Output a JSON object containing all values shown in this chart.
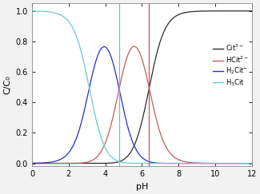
{
  "xlabel": "pH",
  "ylabel": "C/C₀",
  "xlim": [
    0,
    12
  ],
  "ylim": [
    -0.02,
    1.05
  ],
  "xticks": [
    0,
    2,
    4,
    6,
    8,
    10,
    12
  ],
  "yticks": [
    0.0,
    0.2,
    0.4,
    0.6,
    0.8,
    1.0
  ],
  "pKa1": 3.13,
  "pKa2": 4.76,
  "pKa3": 6.4,
  "vline1_x": 4.76,
  "vline2_x": 6.4,
  "vline1_color": "#7ab8d4",
  "vline2_color": "#c55a5a",
  "legend_labels": [
    "Cit$^{3-}$",
    "HCit$^{2-}$",
    "H$_2$Cit$^{-}$",
    "H$_3$Cit"
  ],
  "legend_colors": [
    "#2b2b2b",
    "#c55a5a",
    "#2b2bcc",
    "#66cccc"
  ],
  "fig_facecolor": "#f2f2f2",
  "axes_facecolor": "#ffffff",
  "figsize": [
    3.25,
    2.43
  ],
  "dpi": 100
}
